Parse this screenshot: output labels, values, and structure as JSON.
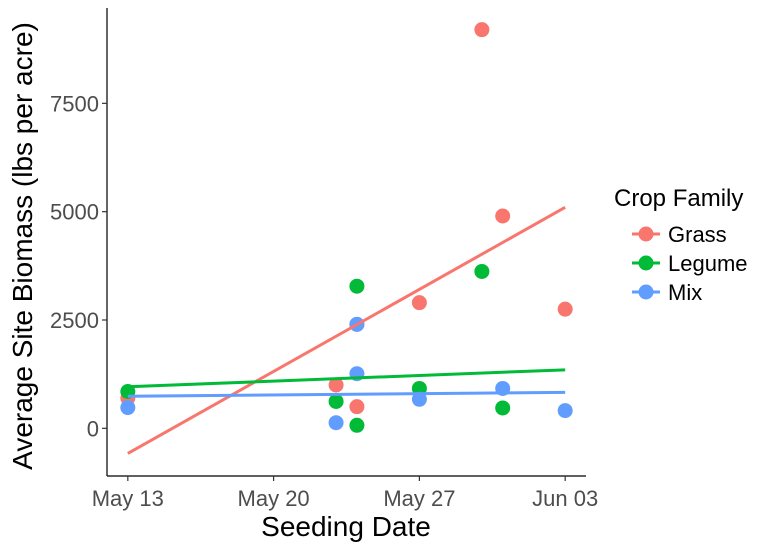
{
  "chart_data": {
    "type": "scatter",
    "xlabel": "Seeding Date",
    "ylabel": "Average Site Biomass (lbs per acre)",
    "x_ticks": [
      {
        "date": "2023-05-13",
        "label": "May 13"
      },
      {
        "date": "2023-05-20",
        "label": "May 20"
      },
      {
        "date": "2023-05-27",
        "label": "May 27"
      },
      {
        "date": "2023-06-03",
        "label": "Jun 03"
      }
    ],
    "y_ticks": [
      0,
      2500,
      5000,
      7500
    ],
    "xlim": [
      "2023-05-12",
      "2023-06-04"
    ],
    "ylim": [
      -1100,
      9700
    ],
    "grid": false,
    "legend": {
      "title": "Crop Family",
      "position": "right"
    },
    "series": [
      {
        "name": "Grass",
        "color": "#F8766D",
        "points": [
          {
            "x": "2023-05-13",
            "y": 700
          },
          {
            "x": "2023-05-23",
            "y": 1000
          },
          {
            "x": "2023-05-24",
            "y": 2400
          },
          {
            "x": "2023-05-24",
            "y": 500
          },
          {
            "x": "2023-05-27",
            "y": 2900
          },
          {
            "x": "2023-05-30",
            "y": 9200
          },
          {
            "x": "2023-05-31",
            "y": 4900
          },
          {
            "x": "2023-06-03",
            "y": 2750
          }
        ],
        "trend": [
          {
            "x": "2023-05-13",
            "y": -580
          },
          {
            "x": "2023-06-03",
            "y": 5100
          }
        ]
      },
      {
        "name": "Legume",
        "color": "#00BA38",
        "points": [
          {
            "x": "2023-05-13",
            "y": 850
          },
          {
            "x": "2023-05-23",
            "y": 620
          },
          {
            "x": "2023-05-24",
            "y": 3280
          },
          {
            "x": "2023-05-24",
            "y": 70
          },
          {
            "x": "2023-05-27",
            "y": 920
          },
          {
            "x": "2023-05-30",
            "y": 3620
          },
          {
            "x": "2023-05-31",
            "y": 470
          }
        ],
        "trend": [
          {
            "x": "2023-05-13",
            "y": 960
          },
          {
            "x": "2023-06-03",
            "y": 1350
          }
        ]
      },
      {
        "name": "Mix",
        "color": "#619CFF",
        "points": [
          {
            "x": "2023-05-13",
            "y": 480
          },
          {
            "x": "2023-05-23",
            "y": 130
          },
          {
            "x": "2023-05-24",
            "y": 2400
          },
          {
            "x": "2023-05-24",
            "y": 1260
          },
          {
            "x": "2023-05-27",
            "y": 670
          },
          {
            "x": "2023-05-31",
            "y": 920
          },
          {
            "x": "2023-06-03",
            "y": 410
          }
        ],
        "trend": [
          {
            "x": "2023-05-13",
            "y": 740
          },
          {
            "x": "2023-06-03",
            "y": 830
          }
        ]
      }
    ]
  }
}
